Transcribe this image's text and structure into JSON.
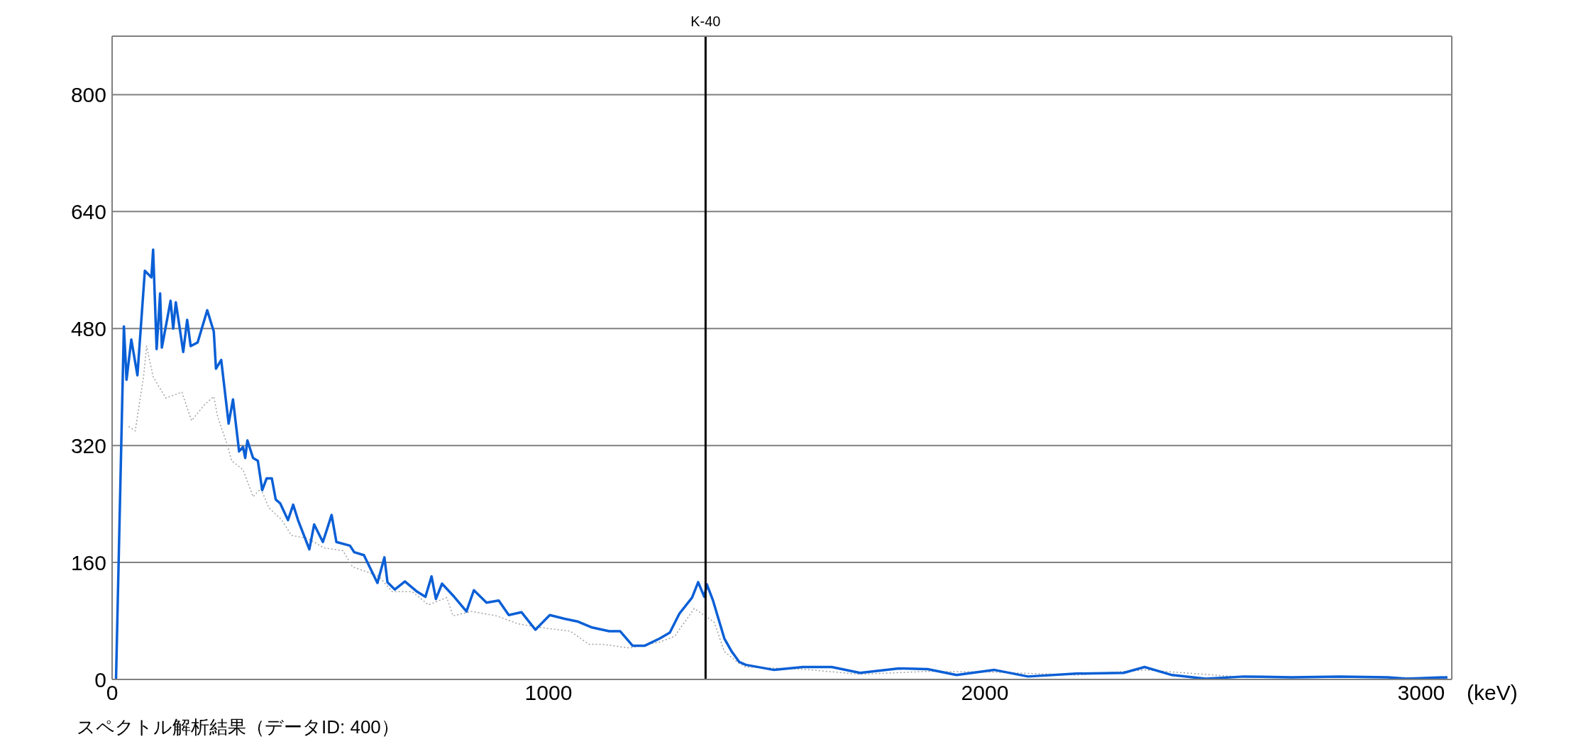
{
  "chart_data": {
    "type": "line",
    "xlabel": "(keV)",
    "annotations": [
      "スペクトル解析結果（データID: 400）"
    ],
    "xlim": [
      0,
      3070
    ],
    "xticks": [
      0,
      1000,
      2000,
      3000
    ],
    "ylim": [
      0,
      880
    ],
    "yticks": [
      0,
      160,
      320,
      480,
      640,
      800
    ],
    "grid": "y",
    "marker": "none",
    "ref_lines": [
      {
        "axis": "x",
        "value": 1360,
        "label": "K-40",
        "color": "#000000"
      }
    ],
    "series": [
      {
        "color": "#a0a0a0",
        "line_style": "dotted",
        "x": [
          38,
          53,
          72,
          79,
          94,
          123,
          160,
          182,
          212,
          233,
          242,
          264,
          274,
          300,
          323,
          341,
          359,
          389,
          411,
          448,
          485,
          529,
          551,
          589,
          611,
          642,
          688,
          725,
          767,
          781,
          824,
          880,
          931,
          982,
          1050,
          1093,
          1125,
          1186,
          1254,
          1289,
          1334,
          1357,
          1380,
          1403,
          1437,
          1452,
          1583,
          1714,
          1869,
          2022,
          2209,
          2366,
          2594,
          2813,
          3060
        ],
        "values": [
          346,
          340,
          414,
          456,
          414,
          385,
          393,
          354,
          376,
          387,
          359,
          321,
          299,
          287,
          250,
          261,
          235,
          218,
          197,
          193,
          180,
          176,
          154,
          146,
          141,
          120,
          120,
          102,
          112,
          87,
          93,
          87,
          76,
          71,
          66,
          48,
          48,
          43,
          51,
          59,
          97,
          88,
          78,
          38,
          22,
          17,
          14,
          7,
          11,
          10,
          6,
          13,
          3,
          3,
          2
        ]
      },
      {
        "color": "#0a5fd6",
        "line_style": "solid",
        "x": [
          9,
          27,
          33,
          44,
          58,
          75,
          90,
          94,
          102,
          110,
          114,
          134,
          140,
          146,
          163,
          172,
          180,
          196,
          218,
          233,
          238,
          250,
          267,
          277,
          291,
          300,
          305,
          310,
          323,
          334,
          344,
          354,
          366,
          375,
          385,
          403,
          415,
          426,
          452,
          463,
          483,
          503,
          514,
          545,
          555,
          577,
          608,
          624,
          631,
          648,
          671,
          699,
          718,
          732,
          742,
          756,
          784,
          812,
          829,
          858,
          886,
          909,
          938,
          970,
          1003,
          1037,
          1068,
          1100,
          1139,
          1164,
          1193,
          1220,
          1255,
          1278,
          1300,
          1329,
          1343,
          1357,
          1363,
          1377,
          1403,
          1420,
          1437,
          1452,
          1517,
          1583,
          1649,
          1714,
          1803,
          1869,
          1935,
          2022,
          2099,
          2209,
          2318,
          2366,
          2429,
          2506,
          2594,
          2703,
          2813,
          2923,
          2967,
          3060
        ],
        "values": [
          1,
          483,
          410,
          465,
          416,
          559,
          550,
          588,
          452,
          528,
          454,
          518,
          480,
          516,
          448,
          492,
          456,
          461,
          505,
          476,
          425,
          437,
          350,
          383,
          312,
          318,
          303,
          327,
          303,
          299,
          259,
          275,
          275,
          246,
          241,
          218,
          239,
          218,
          178,
          212,
          188,
          225,
          188,
          183,
          174,
          170,
          132,
          167,
          133,
          123,
          134,
          120,
          113,
          141,
          110,
          131,
          113,
          93,
          122,
          105,
          108,
          88,
          92,
          68,
          88,
          83,
          79,
          71,
          66,
          66,
          46,
          46,
          56,
          64,
          90,
          112,
          133,
          113,
          130,
          108,
          56,
          38,
          24,
          20,
          13,
          17,
          17,
          9,
          15,
          14,
          6,
          13,
          4,
          8,
          9,
          17,
          6,
          1,
          4,
          3,
          4,
          3,
          1,
          3
        ]
      }
    ]
  }
}
